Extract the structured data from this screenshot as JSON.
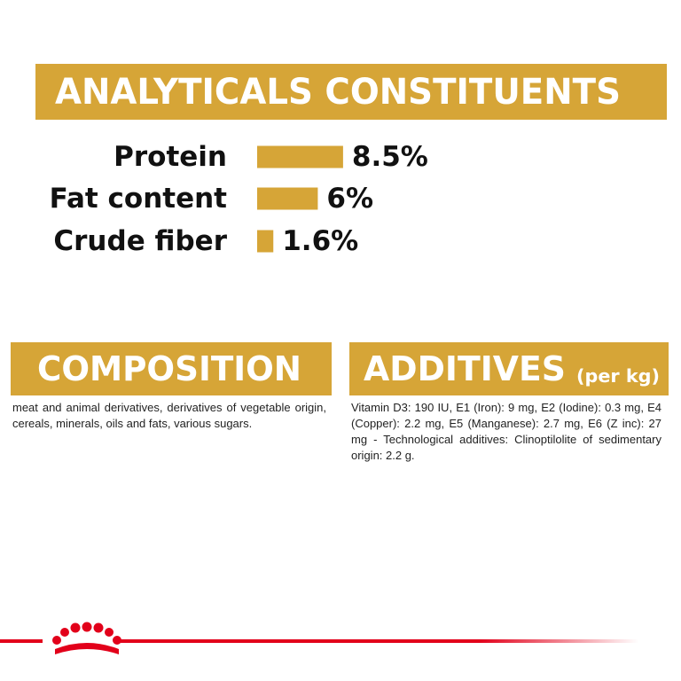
{
  "chart_data": {
    "type": "bar",
    "orientation": "horizontal",
    "title": "ANALYTICALS CONSTITUENTS",
    "categories": [
      "Protein",
      "Fat content",
      "Crude fiber"
    ],
    "values": [
      8.5,
      6,
      1.6
    ],
    "value_labels": [
      "8.5%",
      "6%",
      "1.6%"
    ],
    "color": "#d6a537"
  },
  "composition": {
    "title": "COMPOSITION",
    "text": "meat and animal derivatives, derivatives of vegetable origin, cereals, minerals, oils and fats, various sugars."
  },
  "additives": {
    "title": "ADDITIVES",
    "unit": "(per kg)",
    "text": "Vitamin D3: 190 IU, E1 (Iron): 9 mg, E2 (Iodine): 0.3 mg, E4 (Copper): 2.2 mg, E5 (Manganese): 2.7 mg, E6 (Z inc): 27 mg - Technological additives: Clinoptilolite of sedimentary origin: 2.2 g."
  }
}
